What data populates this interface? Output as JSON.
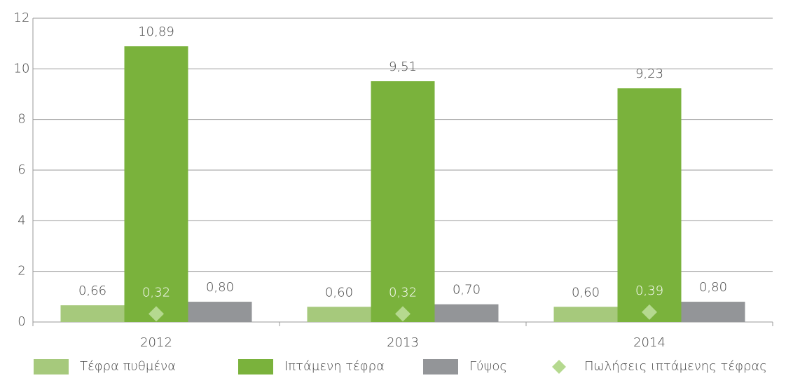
{
  "chart_data": {
    "type": "bar",
    "categories": [
      "2012",
      "2013",
      "2014"
    ],
    "series": [
      {
        "name": "Τέφρα πυθμένα",
        "color": "#a6c97c",
        "values": [
          0.66,
          0.6,
          0.6
        ],
        "value_labels": [
          "0,66",
          "0,60",
          "0,60"
        ]
      },
      {
        "name": "Ιπτάμενη τέφρα",
        "color": "#7ab23c",
        "values": [
          10.89,
          9.51,
          9.23
        ],
        "value_labels": [
          "10,89",
          "9,51",
          "9,23"
        ]
      },
      {
        "name": "Γύψος",
        "color": "#939598",
        "values": [
          0.8,
          0.7,
          0.8
        ],
        "value_labels": [
          "0,80",
          "0,70",
          "0,80"
        ]
      },
      {
        "name": "Πωλήσεις ιπτάμενης τέφρας",
        "color": "#b5d98f",
        "marker": "diamond",
        "values": [
          0.32,
          0.32,
          0.39
        ],
        "value_labels": [
          "0,32",
          "0,32",
          "0,39"
        ]
      }
    ],
    "ylim": [
      0,
      12
    ],
    "yticks": [
      0,
      2,
      4,
      6,
      8,
      10,
      12
    ],
    "grid": true,
    "legend": "bottom"
  }
}
